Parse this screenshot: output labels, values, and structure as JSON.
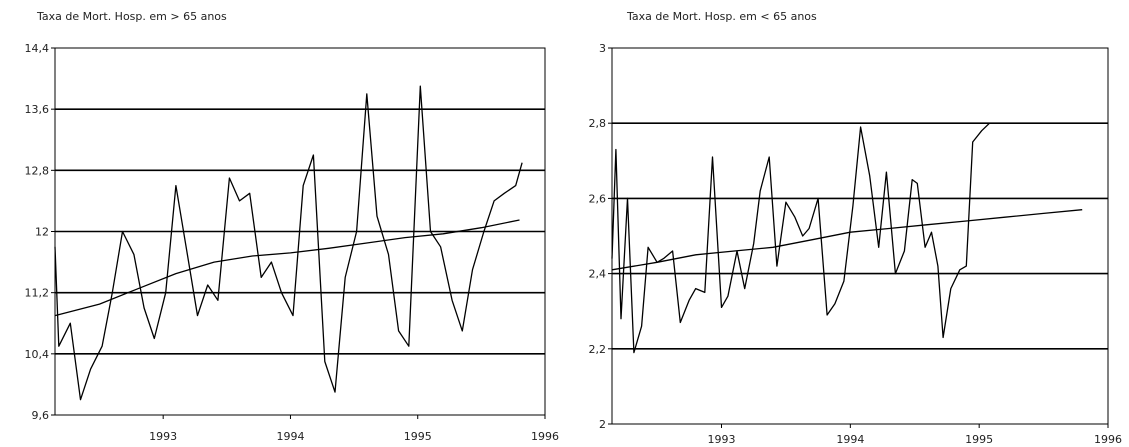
{
  "chart_data": [
    {
      "type": "line",
      "title": "Taxa de Mort. Hosp. em > 65 anos",
      "xlabel": "",
      "ylabel": "",
      "ylim": [
        9.6,
        14.4
      ],
      "xlim": [
        1992.15,
        1996.0
      ],
      "y_ticks": [
        "9,6",
        "10,4",
        "11,2",
        "12",
        "12,8",
        "13,6",
        "14,4"
      ],
      "y_tick_values": [
        9.6,
        10.4,
        11.2,
        12.0,
        12.8,
        13.6,
        14.4
      ],
      "x_ticks": [
        "1993",
        "1994",
        "1995",
        "1996"
      ],
      "x_tick_values": [
        1993,
        1994,
        1995,
        1996
      ],
      "grid": "horizontal",
      "legend": "none",
      "colors": {
        "line": "#000000",
        "grid": "#000000"
      },
      "series": [
        {
          "x": [
            1992.15,
            1992.18,
            1992.27,
            1992.35,
            1992.43,
            1992.52,
            1992.6,
            1992.68,
            1992.77,
            1992.85,
            1992.93,
            1993.02,
            1993.1,
            1993.18,
            1993.27,
            1993.35,
            1993.43,
            1993.52,
            1993.6,
            1993.68,
            1993.77,
            1993.85,
            1993.93,
            1994.02,
            1994.1,
            1994.18,
            1994.27,
            1994.35,
            1994.43,
            1994.52,
            1994.6,
            1994.68,
            1994.77,
            1994.85,
            1994.93,
            1995.02,
            1995.1,
            1995.18,
            1995.27,
            1995.35,
            1995.43,
            1995.52,
            1995.6,
            1995.68,
            1995.77,
            1995.82
          ],
          "values": [
            11.8,
            10.5,
            10.8,
            9.8,
            10.2,
            10.5,
            11.2,
            12.0,
            11.7,
            11.0,
            10.6,
            11.2,
            12.6,
            11.8,
            10.9,
            11.3,
            11.1,
            12.7,
            12.4,
            12.5,
            11.4,
            11.6,
            11.2,
            10.9,
            12.6,
            13.0,
            10.3,
            9.9,
            11.4,
            12.0,
            13.8,
            12.2,
            11.7,
            10.7,
            10.5,
            13.9,
            12.0,
            11.8,
            11.1,
            10.7,
            11.5,
            12.0,
            12.4,
            12.5,
            12.6,
            12.9
          ]
        },
        {
          "x": [
            1992.15,
            1992.5,
            1992.8,
            1993.1,
            1993.4,
            1993.7,
            1994.0,
            1994.3,
            1994.6,
            1994.9,
            1995.2,
            1995.5,
            1995.8
          ],
          "values": [
            10.9,
            11.05,
            11.25,
            11.45,
            11.6,
            11.68,
            11.72,
            11.78,
            11.85,
            11.92,
            11.97,
            12.05,
            12.15
          ]
        }
      ]
    },
    {
      "type": "line",
      "title": "Taxa de Mort. Hosp. em < 65 anos",
      "xlabel": "",
      "ylabel": "",
      "ylim": [
        2.0,
        3.0
      ],
      "xlim": [
        1992.15,
        1996.0
      ],
      "y_ticks": [
        "2",
        "2,2",
        "2,4",
        "2,6",
        "2,8",
        "3"
      ],
      "y_tick_values": [
        2.0,
        2.2,
        2.4,
        2.6,
        2.8,
        3.0
      ],
      "x_ticks": [
        "1993",
        "1994",
        "1995",
        "1996"
      ],
      "x_tick_values": [
        1993,
        1994,
        1995,
        1996
      ],
      "grid": "horizontal",
      "legend": "none",
      "colors": {
        "line": "#000000",
        "grid": "#000000"
      },
      "series": [
        {
          "x": [
            1992.15,
            1992.18,
            1992.22,
            1992.27,
            1992.32,
            1992.38,
            1992.43,
            1992.5,
            1992.55,
            1992.62,
            1992.68,
            1992.75,
            1992.8,
            1992.87,
            1992.93,
            1993.0,
            1993.05,
            1993.12,
            1993.18,
            1993.25,
            1993.3,
            1993.37,
            1993.43,
            1993.5,
            1993.57,
            1993.63,
            1993.68,
            1993.75,
            1993.82,
            1993.88,
            1993.95,
            1994.02,
            1994.08,
            1994.15,
            1994.22,
            1994.28,
            1994.35,
            1994.42,
            1994.48,
            1994.52,
            1994.58,
            1994.63,
            1994.68,
            1994.72,
            1994.78,
            1994.85,
            1994.9,
            1994.95,
            1995.02,
            1995.08,
            1995.15,
            1995.22,
            1995.28,
            1995.35,
            1995.42,
            1995.48,
            1995.52,
            1995.58,
            1995.63,
            1995.7,
            1995.78,
            1995.85
          ],
          "values": [
            2.44,
            2.73,
            2.28,
            2.6,
            2.19,
            2.26,
            2.47,
            2.43,
            2.44,
            2.46,
            2.27,
            2.33,
            2.36,
            2.35,
            2.71,
            2.31,
            2.34,
            2.46,
            2.36,
            2.48,
            2.62,
            2.71,
            2.42,
            2.59,
            2.55,
            2.5,
            2.52,
            2.6,
            2.29,
            2.32,
            2.38,
            2.58,
            2.79,
            2.66,
            2.47,
            2.67,
            2.4,
            2.46,
            2.65,
            2.64,
            2.47,
            2.51,
            2.42,
            2.23,
            2.36,
            2.41,
            2.42,
            2.75,
            2.78,
            2.8,
            2.8,
            2.8,
            2.8,
            2.8,
            2.8,
            2.8,
            2.8,
            2.8,
            2.8,
            2.8,
            2.8,
            2.8
          ]
        },
        {
          "x": [
            1992.15,
            1992.5,
            1992.8,
            1993.1,
            1993.4,
            1993.7,
            1994.0,
            1994.3,
            1994.6,
            1994.9,
            1995.2,
            1995.5,
            1995.8
          ],
          "values": [
            2.41,
            2.43,
            2.45,
            2.46,
            2.47,
            2.49,
            2.51,
            2.52,
            2.53,
            2.54,
            2.55,
            2.56,
            2.57
          ]
        }
      ]
    }
  ]
}
